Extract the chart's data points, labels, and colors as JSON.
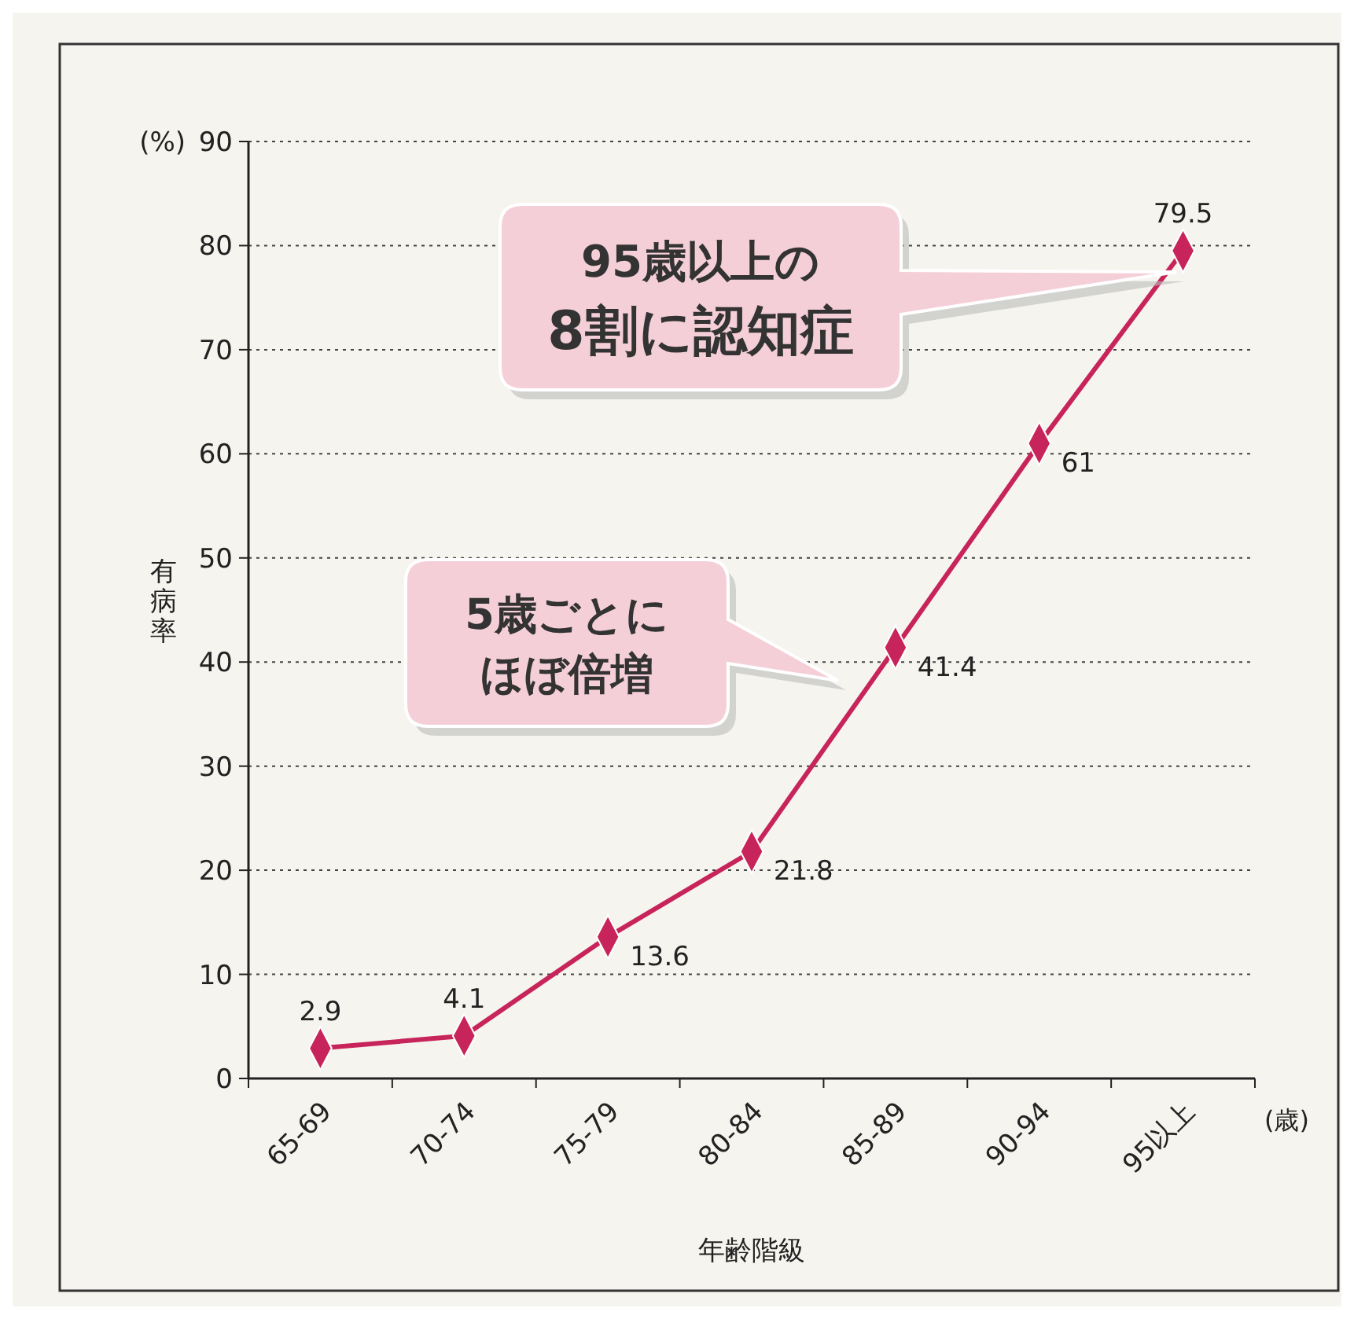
{
  "chart_data": {
    "type": "line",
    "categories": [
      "65-69",
      "70-74",
      "75-79",
      "80-84",
      "85-89",
      "90-94",
      "95以上"
    ],
    "series": [
      {
        "color": "#c8245c",
        "values": [
          2.9,
          4.1,
          13.6,
          21.8,
          41.4,
          61,
          79.5
        ]
      }
    ],
    "ylim": [
      0,
      90
    ],
    "yticks": [
      0,
      10,
      20,
      30,
      40,
      50,
      60,
      70,
      80,
      90
    ],
    "grid": "y",
    "marker": "diamond",
    "line_style": "solid",
    "data_labels": true,
    "xlabel": "年齢階級",
    "ylabel": "有病率",
    "annotations": [
      "(%)",
      "(歳)",
      "95歳以上の",
      "8割に認知症",
      "5歳ごとに",
      "ほぼ倍増"
    ]
  }
}
